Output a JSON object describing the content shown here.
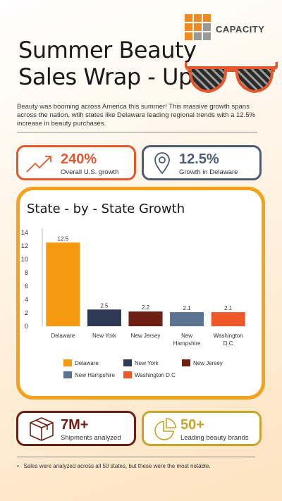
{
  "brand": {
    "name": "CAPACITY",
    "accent": "#f08a24"
  },
  "title_line1": "Summer Beauty",
  "title_line2": "Sales Wrap - Up",
  "intro": "Beauty was booming across America this summer!  This massive growth spans across the nation, wtih states like Delaware leading regional trends with a 12.5% increase in beauty purchases.",
  "stats": [
    {
      "value": "240%",
      "label": "Overall U.S. growth",
      "color": "#e4582c",
      "icon": "trending-up-icon"
    },
    {
      "value": "12.5%",
      "label": "Growth in Delaware",
      "color": "#4d5b73",
      "icon": "map-pin-icon"
    },
    {
      "value": "7M+",
      "label": "Shipments analyzed",
      "color": "#6d1f12",
      "icon": "package-icon"
    },
    {
      "value": "50+",
      "label": "Leading beauty brands",
      "color": "#c7a52b",
      "icon": "pie-chart-icon"
    }
  ],
  "chart_data": {
    "type": "bar",
    "title": "State - by - State Growth",
    "categories": [
      "Delaware",
      "New York",
      "New Jersey",
      "New Hampshire",
      "Washington D.C"
    ],
    "tick_labels": [
      [
        "Delaware"
      ],
      [
        "New York"
      ],
      [
        "New Jersey"
      ],
      [
        "New",
        "Hampshire"
      ],
      [
        "Washington",
        "D.C"
      ]
    ],
    "values": [
      12.5,
      2.5,
      2.2,
      2.1,
      2.1
    ],
    "data_labels": [
      "12.5",
      "2.5",
      "2.2",
      "2.1",
      "2.1"
    ],
    "colors": [
      "#f59a0f",
      "#2e3a55",
      "#6d1f12",
      "#5a7390",
      "#f0582a"
    ],
    "ylim": [
      0,
      14
    ],
    "yticks": [
      0,
      2,
      4,
      6,
      8,
      10,
      12,
      14
    ],
    "grid": false,
    "legend_position": "bottom",
    "legend": [
      "Delaware",
      "New York",
      "New Jersey",
      "New Hampshire",
      "Washington D.C"
    ]
  },
  "footnote": "Sales were analyzed across all 50 states, but these were the most notable."
}
